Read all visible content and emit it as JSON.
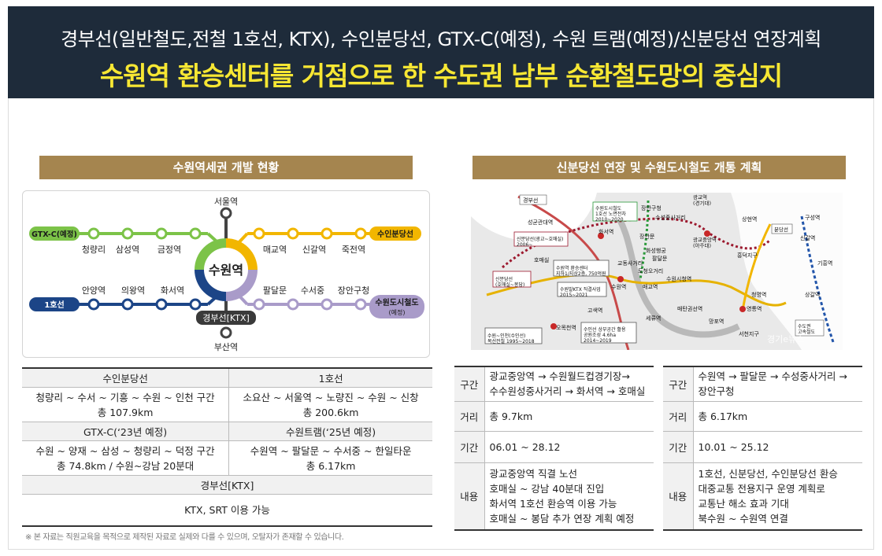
{
  "header": {
    "line1": "경부선(일반철도,전철 1호선, KTX), 수인분당선, GTX-C(예정), 수원 트램(예정)/신분당선 연장계획",
    "line2": "수원역 환승센터를 거점으로 한 수도권 남부 순환철도망의 중심지"
  },
  "colors": {
    "gtx": "#7cc348",
    "suin": "#f2b600",
    "line1": "#1c4587",
    "tram": "#a99bc9",
    "gyeongbu": "#444444",
    "banner": "#a5854f",
    "header_bg": "#1e2b3a",
    "header_accent": "#f7e733"
  },
  "left_panel": {
    "title": "수원역세권 개발 현황",
    "diagram": {
      "center": "수원역",
      "top_station": "서울역",
      "bottom_station": "부산역",
      "gyeongbu_label": "경부선[KTX]",
      "gtx_label": "GTX-C(예정)",
      "gtx_stations": [
        "청량리",
        "삼성역",
        "금정역"
      ],
      "line1_label": "1호선",
      "line1_stations": [
        "안양역",
        "의왕역",
        "화서역"
      ],
      "suin_label": "수인분당선",
      "suin_stations": [
        "매교역",
        "신갈역",
        "죽전역"
      ],
      "tram_label": "수원도시철도",
      "tram_sub": "(예정)",
      "tram_stations": [
        "팔달문",
        "수서중",
        "장안구청"
      ]
    },
    "table": {
      "suin_header": "수인분당선",
      "suin_route": "청량리 ~ 수서 ~ 기흥 ~ 수원 ~ 인천 구간",
      "suin_length": "총 107.9km",
      "line1_header": "1호선",
      "line1_route": "소요산 ~ 서울역 ~ 노량진 ~ 수원 ~ 신창",
      "line1_length": "총 200.6km",
      "gtx_header": "GTX-C(‘23년 예정)",
      "gtx_route": "수원 ~ 양재 ~ 삼성 ~ 청량리 ~ 덕정 구간",
      "gtx_length": "총 74.8km / 수원~강남 20분대",
      "tram_header": "수원트램(‘25년 예정)",
      "tram_route": "수원역 ~ 팔달문 ~ 수서중 ~ 한일타운",
      "tram_length": "총 6.17km",
      "gyeongbu_header": "경부선[KTX]",
      "gyeongbu_body": "KTX, SRT 이용 가능"
    },
    "footnote": "※ 본 자료는 직원교육을 목적으로 제작된 자료로 실제와 다를 수 있으며, 오탈자가 존재할 수 있습니다."
  },
  "right_panel": {
    "title": "신분당선 연장 및 수원도시철도 개통 계획",
    "map": {
      "boxes": [
        "경부선",
        "수원도시철도\n1호선 노면전차\n2010~2020",
        "신분당선(광교~호매실)\n2006~",
        "수원역 환승센터\n지하1/지상2층, 750억원",
        "신분당선\n(호매실~봉담)",
        "수원발KTX 직결사업\n2015~2021",
        "수원~인천(수인선)\n복선전철 1995~2018",
        "수인선 상부공간 활용\n공원조성 4.6ha\n2014~2019",
        "광교역\n(경기대)",
        "광교중앙역\n(아주대)",
        "분당선",
        "수도권\n고속철도"
      ],
      "stations": [
        "성균관대역",
        "화서역",
        "장안문",
        "장안구청",
        "수성중사거리",
        "화성행궁",
        "팔달문",
        "교동사거리",
        "도청오거리",
        "수원역",
        "매교역",
        "수원시청역",
        "세류역",
        "고색역",
        "오목천역",
        "매탄권선역",
        "망포역",
        "영통역",
        "청명역",
        "상갈역",
        "기흥역",
        "구성역",
        "신갈역",
        "상현역",
        "흥덕지구",
        "서천지구",
        "호매실"
      ],
      "watermark": "경기e뉴스"
    },
    "table_a": {
      "k1": "구간",
      "v1_line1": "광교중앙역 → 수원월드컵경기장→",
      "v1_line2": "수수원성중사거리 → 화서역 → 호매실",
      "k2": "거리",
      "v2": "총 9.7km",
      "k3": "기간",
      "v3": "06.01 ~ 28.12",
      "k4": "내용",
      "v4_lines": [
        "광교중앙역 직결 노선",
        "호매실 ~ 강남 40분대 진입",
        "화서역 1호선 환승역 이용 가능",
        "호매실 ~ 봉담 추가 연장 계획 예정"
      ]
    },
    "table_b": {
      "k1": "구간",
      "v1_line1": "수원역 → 팔달문 → 수성중사거리 →",
      "v1_line2": "장안구청",
      "k2": "거리",
      "v2": "총 6.17km",
      "k3": "기간",
      "v3": "10.01 ~ 25.12",
      "k4": "내용",
      "v4_lines": [
        "1호선, 신분당선, 수인분당선 환승",
        "대중교통 전용지구 운영 계획로",
        "교통난 해소 효과 기대",
        "북수원 ~ 수원역 연결"
      ]
    }
  }
}
